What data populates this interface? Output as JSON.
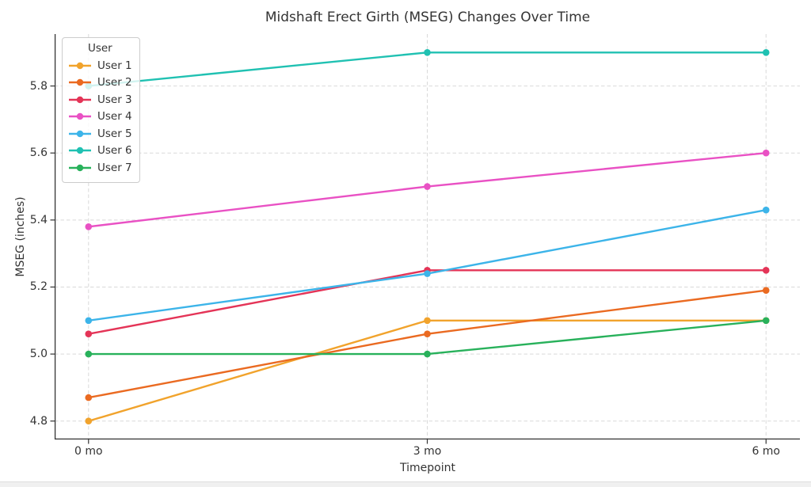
{
  "chart_data": {
    "type": "line",
    "title": "Midshaft Erect Girth (MSEG) Changes Over Time",
    "xlabel": "Timepoint",
    "ylabel": "MSEG (inches)",
    "categories": [
      "0 mo",
      "3 mo",
      "6 mo"
    ],
    "x": [
      0,
      1,
      2
    ],
    "series": [
      {
        "name": "User 1",
        "color": "#f1a32c",
        "values": [
          4.8,
          5.1,
          5.1
        ]
      },
      {
        "name": "User 2",
        "color": "#ea6a21",
        "values": [
          4.87,
          5.06,
          5.19
        ]
      },
      {
        "name": "User 3",
        "color": "#e43457",
        "values": [
          5.06,
          5.25,
          5.25
        ]
      },
      {
        "name": "User 4",
        "color": "#e951c4",
        "values": [
          5.38,
          5.5,
          5.6
        ]
      },
      {
        "name": "User 5",
        "color": "#3cb4e9",
        "values": [
          5.1,
          5.24,
          5.43
        ]
      },
      {
        "name": "User 6",
        "color": "#20c1b2",
        "values": [
          5.8,
          5.9,
          5.9
        ]
      },
      {
        "name": "User 7",
        "color": "#28b15b",
        "values": [
          5.0,
          5.0,
          5.1
        ]
      }
    ],
    "yticks": [
      4.8,
      5.0,
      5.2,
      5.4,
      5.6,
      5.8
    ],
    "ytick_labels": [
      "4.8",
      "5.0",
      "5.2",
      "5.4",
      "5.6",
      "5.8"
    ],
    "ylim": [
      4.745,
      5.955
    ],
    "xlim": [
      -0.1,
      2.1
    ],
    "grid": true,
    "legend": {
      "title": "User",
      "position": "upper-left"
    }
  }
}
